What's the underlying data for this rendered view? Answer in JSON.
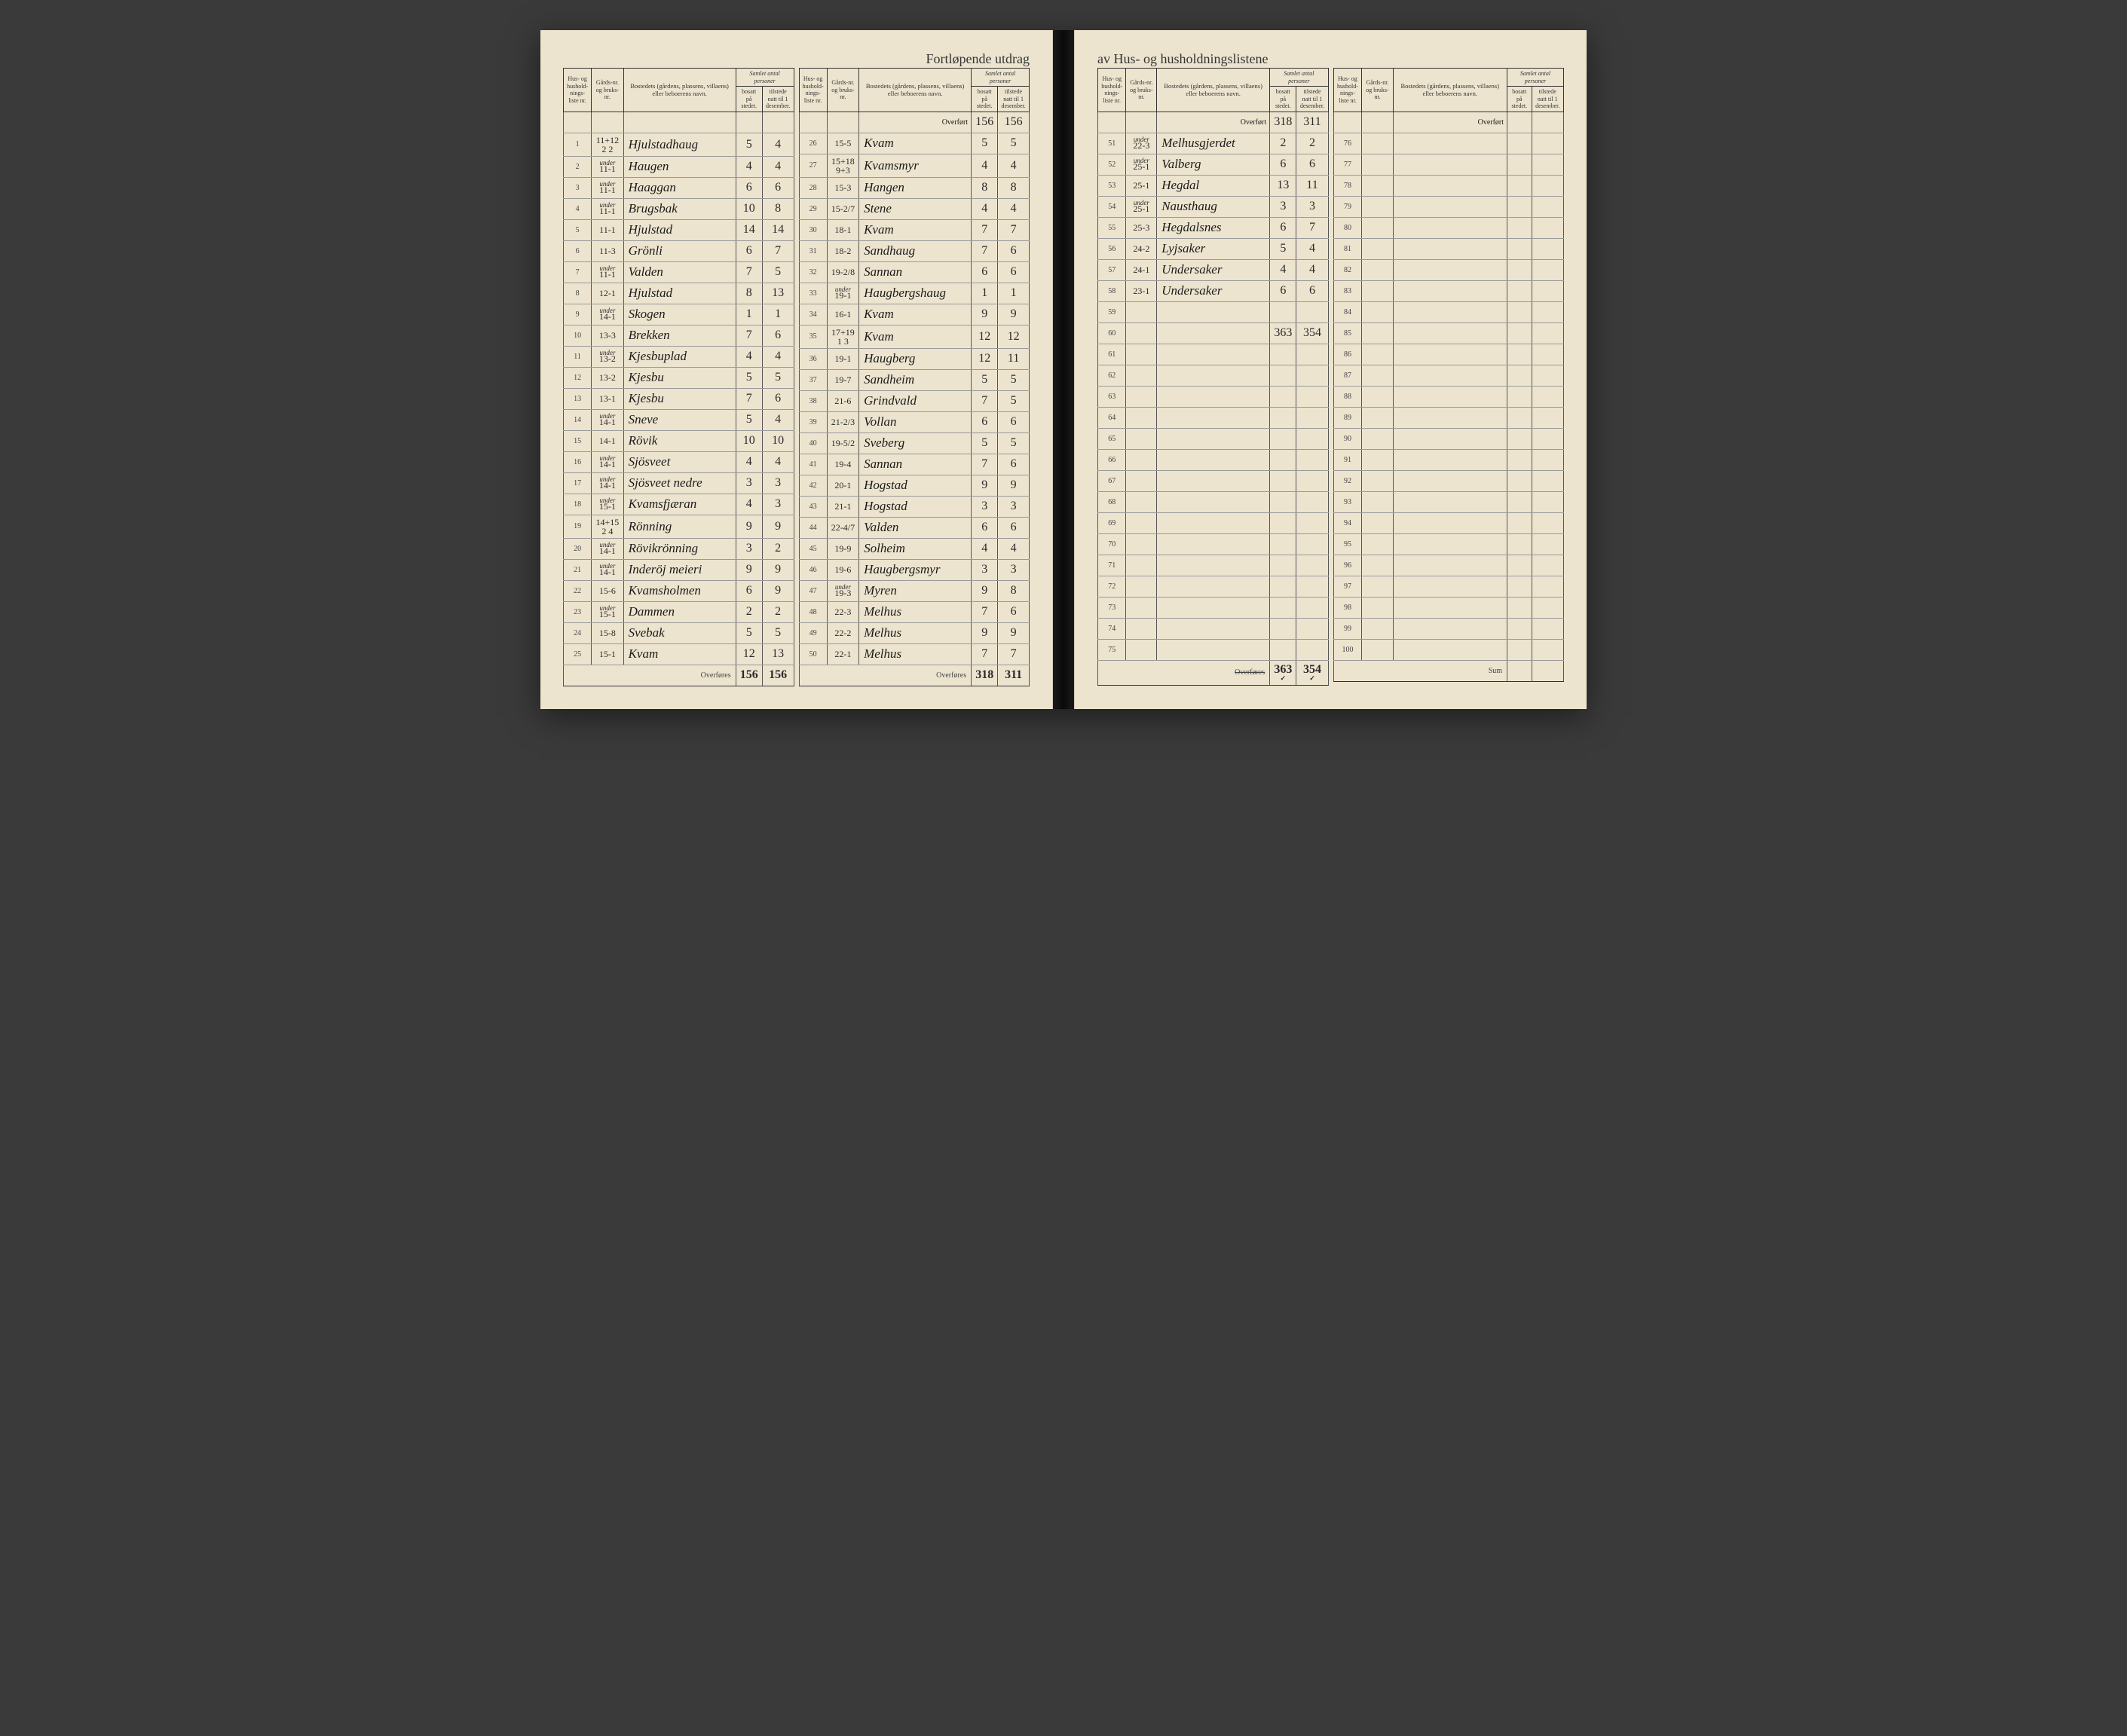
{
  "title_left": "Fortløpende utdrag",
  "title_right": "av Hus- og husholdningslistene",
  "headers": {
    "h1": "Hus- og hushold-nings-liste nr.",
    "h2": "Gårds-nr. og bruks-nr.",
    "h3": "Bostedets (gårdens, plassens, villaens) eller beboerens navn.",
    "h4": "Samlet antal personer",
    "h4a": "bosatt på stedet.",
    "h4b": "tilstede natt til 1 desember.",
    "overfort": "Overført",
    "overfores": "Overføres",
    "overfores_strike": "Overføres",
    "sum": "Sum"
  },
  "under_prefix": "under",
  "col1": {
    "rows": [
      {
        "n": "1",
        "g": "11+12\n2 2",
        "name": "Hjulstadhaug",
        "b": "5",
        "t": "4"
      },
      {
        "n": "2",
        "g": "11-1",
        "prefix": "under",
        "name": "Haugen",
        "b": "4",
        "t": "4"
      },
      {
        "n": "3",
        "g": "11-1",
        "prefix": "under",
        "name": "Haaggan",
        "b": "6",
        "t": "6"
      },
      {
        "n": "4",
        "g": "11-1",
        "prefix": "under",
        "name": "Brugsbak",
        "b": "10",
        "t": "8"
      },
      {
        "n": "5",
        "g": "11-1",
        "name": "Hjulstad",
        "b": "14",
        "t": "14"
      },
      {
        "n": "6",
        "g": "11-3",
        "name": "Grönli",
        "b": "6",
        "t": "7"
      },
      {
        "n": "7",
        "g": "11-1",
        "prefix": "under",
        "name": "Valden",
        "b": "7",
        "t": "5"
      },
      {
        "n": "8",
        "g": "12-1",
        "name": "Hjulstad",
        "b": "8",
        "t": "13"
      },
      {
        "n": "9",
        "g": "14-1",
        "prefix": "under",
        "name": "Skogen",
        "b": "1",
        "t": "1"
      },
      {
        "n": "10",
        "g": "13-3",
        "name": "Brekken",
        "b": "7",
        "t": "6"
      },
      {
        "n": "11",
        "g": "13-2",
        "prefix": "under",
        "name": "Kjesbuplad",
        "b": "4",
        "t": "4"
      },
      {
        "n": "12",
        "g": "13-2",
        "name": "Kjesbu",
        "b": "5",
        "t": "5"
      },
      {
        "n": "13",
        "g": "13-1",
        "name": "Kjesbu",
        "b": "7",
        "t": "6"
      },
      {
        "n": "14",
        "g": "14-1",
        "prefix": "under",
        "name": "Sneve",
        "b": "5",
        "t": "4"
      },
      {
        "n": "15",
        "g": "14-1",
        "name": "Rövik",
        "b": "10",
        "t": "10"
      },
      {
        "n": "16",
        "g": "14-1",
        "prefix": "under",
        "name": "Sjösveet",
        "b": "4",
        "t": "4"
      },
      {
        "n": "17",
        "g": "14-1",
        "prefix": "under",
        "name": "Sjösveet nedre",
        "b": "3",
        "t": "3"
      },
      {
        "n": "18",
        "g": "15-1",
        "prefix": "under",
        "name": "Kvamsfjæran",
        "b": "4",
        "t": "3"
      },
      {
        "n": "19",
        "g": "14+15\n2 4",
        "name": "Rönning",
        "b": "9",
        "t": "9"
      },
      {
        "n": "20",
        "g": "14-1",
        "prefix": "under",
        "name": "Rövikrönning",
        "b": "3",
        "t": "2"
      },
      {
        "n": "21",
        "g": "14-1",
        "prefix": "under",
        "name": "Inderöj meieri",
        "b": "9",
        "t": "9"
      },
      {
        "n": "22",
        "g": "15-6",
        "name": "Kvamsholmen",
        "b": "6",
        "t": "9"
      },
      {
        "n": "23",
        "g": "15-1",
        "prefix": "under",
        "name": "Dammen",
        "b": "2",
        "t": "2"
      },
      {
        "n": "24",
        "g": "15-8",
        "name": "Svebak",
        "b": "5",
        "t": "5"
      },
      {
        "n": "25",
        "g": "15-1",
        "name": "Kvam",
        "b": "12",
        "t": "13"
      }
    ],
    "footer_b": "156",
    "footer_t": "156"
  },
  "col2": {
    "overfort_b": "156",
    "overfort_t": "156",
    "rows": [
      {
        "n": "26",
        "g": "15-5",
        "name": "Kvam",
        "b": "5",
        "t": "5"
      },
      {
        "n": "27",
        "g": "15+18\n9+3",
        "name": "Kvamsmyr",
        "b": "4",
        "t": "4"
      },
      {
        "n": "28",
        "g": "15-3",
        "name": "Hangen",
        "b": "8",
        "t": "8"
      },
      {
        "n": "29",
        "g": "15-2/7",
        "name": "Stene",
        "b": "4",
        "t": "4"
      },
      {
        "n": "30",
        "g": "18-1",
        "name": "Kvam",
        "b": "7",
        "t": "7"
      },
      {
        "n": "31",
        "g": "18-2",
        "name": "Sandhaug",
        "b": "7",
        "t": "6"
      },
      {
        "n": "32",
        "g": "19-2/8",
        "name": "Sannan",
        "b": "6",
        "t": "6"
      },
      {
        "n": "33",
        "g": "19-1",
        "prefix": "under",
        "name": "Haugbergshaug",
        "b": "1",
        "t": "1"
      },
      {
        "n": "34",
        "g": "16-1",
        "name": "Kvam",
        "b": "9",
        "t": "9"
      },
      {
        "n": "35",
        "g": "17+19\n1 3",
        "name": "Kvam",
        "b": "12",
        "t": "12"
      },
      {
        "n": "36",
        "g": "19-1",
        "name": "Haugberg",
        "b": "12",
        "t": "11"
      },
      {
        "n": "37",
        "g": "19-7",
        "name": "Sandheim",
        "b": "5",
        "t": "5"
      },
      {
        "n": "38",
        "g": "21-6",
        "name": "Grindvald",
        "b": "7",
        "t": "5"
      },
      {
        "n": "39",
        "g": "21-2/3",
        "name": "Vollan",
        "b": "6",
        "t": "6"
      },
      {
        "n": "40",
        "g": "19-5/2",
        "name": "Sveberg",
        "b": "5",
        "t": "5"
      },
      {
        "n": "41",
        "g": "19-4",
        "name": "Sannan",
        "b": "7",
        "t": "6"
      },
      {
        "n": "42",
        "g": "20-1",
        "name": "Hogstad",
        "b": "9",
        "t": "9"
      },
      {
        "n": "43",
        "g": "21-1",
        "name": "Hogstad",
        "b": "3",
        "t": "3"
      },
      {
        "n": "44",
        "g": "22-4/7",
        "name": "Valden",
        "b": "6",
        "t": "6"
      },
      {
        "n": "45",
        "g": "19-9",
        "name": "Solheim",
        "b": "4",
        "t": "4"
      },
      {
        "n": "46",
        "g": "19-6",
        "name": "Haugbergsmyr",
        "b": "3",
        "t": "3"
      },
      {
        "n": "47",
        "g": "19-3",
        "prefix": "under",
        "name": "Myren",
        "b": "9",
        "t": "8"
      },
      {
        "n": "48",
        "g": "22-3",
        "name": "Melhus",
        "b": "7",
        "t": "6"
      },
      {
        "n": "49",
        "g": "22-2",
        "name": "Melhus",
        "b": "9",
        "t": "9"
      },
      {
        "n": "50",
        "g": "22-1",
        "name": "Melhus",
        "b": "7",
        "t": "7"
      }
    ],
    "footer_b": "318",
    "footer_t": "311"
  },
  "col3": {
    "overfort_b": "318",
    "overfort_t": "311",
    "rows": [
      {
        "n": "51",
        "g": "22-3",
        "prefix": "under",
        "name": "Melhusgjerdet",
        "b": "2",
        "t": "2"
      },
      {
        "n": "52",
        "g": "25-1",
        "prefix": "under",
        "name": "Valberg",
        "b": "6",
        "t": "6"
      },
      {
        "n": "53",
        "g": "25-1",
        "name": "Hegdal",
        "b": "13",
        "t": "11"
      },
      {
        "n": "54",
        "g": "25-1",
        "prefix": "under",
        "name": "Nausthaug",
        "b": "3",
        "t": "3"
      },
      {
        "n": "55",
        "g": "25-3",
        "name": "Hegdalsnes",
        "b": "6",
        "t": "7"
      },
      {
        "n": "56",
        "g": "24-2",
        "name": "Lyjsaker",
        "b": "5",
        "t": "4"
      },
      {
        "n": "57",
        "g": "24-1",
        "name": "Undersaker",
        "b": "4",
        "t": "4"
      },
      {
        "n": "58",
        "g": "23-1",
        "name": "Undersaker",
        "b": "6",
        "t": "6"
      },
      {
        "n": "59",
        "g": "",
        "name": "",
        "b": "",
        "t": ""
      },
      {
        "n": "60",
        "g": "",
        "name": "",
        "b": "363",
        "t": "354"
      },
      {
        "n": "61"
      },
      {
        "n": "62"
      },
      {
        "n": "63"
      },
      {
        "n": "64"
      },
      {
        "n": "65"
      },
      {
        "n": "66"
      },
      {
        "n": "67"
      },
      {
        "n": "68"
      },
      {
        "n": "69"
      },
      {
        "n": "70"
      },
      {
        "n": "71"
      },
      {
        "n": "72"
      },
      {
        "n": "73"
      },
      {
        "n": "74"
      },
      {
        "n": "75"
      }
    ],
    "footer_b": "363",
    "footer_t": "354"
  },
  "col4": {
    "rows": [
      {
        "n": "76"
      },
      {
        "n": "77"
      },
      {
        "n": "78"
      },
      {
        "n": "79"
      },
      {
        "n": "80"
      },
      {
        "n": "81"
      },
      {
        "n": "82"
      },
      {
        "n": "83"
      },
      {
        "n": "84"
      },
      {
        "n": "85"
      },
      {
        "n": "86"
      },
      {
        "n": "87"
      },
      {
        "n": "88"
      },
      {
        "n": "89"
      },
      {
        "n": "90"
      },
      {
        "n": "91"
      },
      {
        "n": "92"
      },
      {
        "n": "93"
      },
      {
        "n": "94"
      },
      {
        "n": "95"
      },
      {
        "n": "96"
      },
      {
        "n": "97"
      },
      {
        "n": "98"
      },
      {
        "n": "99"
      },
      {
        "n": "100"
      }
    ]
  }
}
